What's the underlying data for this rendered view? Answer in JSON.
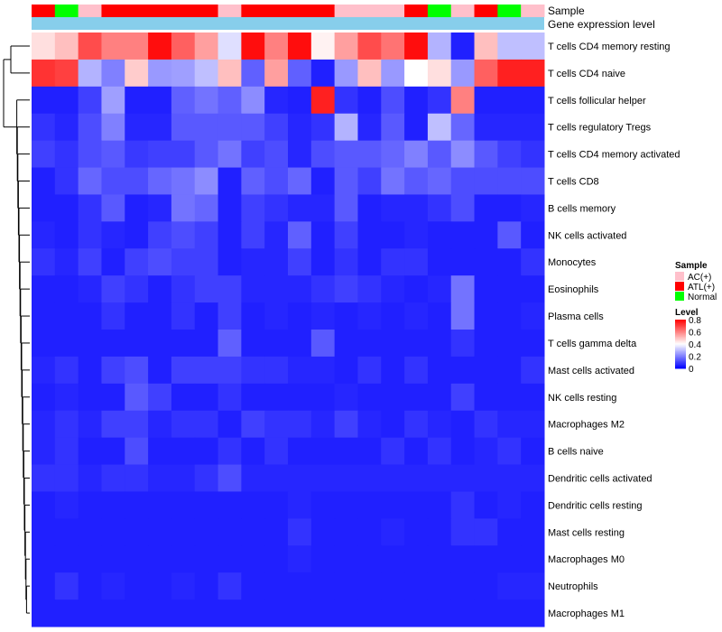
{
  "chart_data": {
    "type": "heatmap",
    "title": "",
    "annotation_rows": [
      {
        "name": "Sample",
        "values": [
          "ATL(+)",
          "Normal",
          "AC(+)",
          "ATL(+)",
          "ATL(+)",
          "ATL(+)",
          "ATL(+)",
          "ATL(+)",
          "AC(+)",
          "ATL(+)",
          "ATL(+)",
          "ATL(+)",
          "ATL(+)",
          "AC(+)",
          "AC(+)",
          "AC(+)",
          "ATL(+)",
          "Normal",
          "AC(+)",
          "ATL(+)",
          "Normal",
          "AC(+)"
        ]
      },
      {
        "name": "Gene expression level"
      }
    ],
    "rows": [
      "T cells CD4 memory resting",
      "T cells CD4 naive",
      "T cells follicular helper",
      "T cells regulatory  Tregs",
      "T cells CD4 memory activated",
      "T cells CD8",
      "B cells memory",
      "NK cells activated",
      "Monocytes",
      "Eosinophils",
      "Plasma cells",
      "T cells gamma delta",
      "Mast cells activated",
      "NK cells resting",
      "Macrophages M2",
      "B cells naive",
      "Dendritic cells activated",
      "Dendritic cells resting",
      "Mast cells resting",
      "Macrophages M0",
      "Neutrophils",
      "Macrophages M1"
    ],
    "values": [
      [
        0.45,
        0.5,
        0.68,
        0.6,
        0.6,
        0.78,
        0.65,
        0.55,
        0.35,
        0.78,
        0.6,
        0.78,
        0.42,
        0.55,
        0.68,
        0.62,
        0.78,
        0.28,
        0.05,
        0.5,
        0.3,
        0.3
      ],
      [
        0.72,
        0.7,
        0.28,
        0.2,
        0.48,
        0.24,
        0.25,
        0.3,
        0.5,
        0.15,
        0.55,
        0.15,
        0.05,
        0.24,
        0.5,
        0.24,
        0.4,
        0.45,
        0.24,
        0.65,
        0.75,
        0.75
      ],
      [
        0.05,
        0.05,
        0.1,
        0.25,
        0.05,
        0.05,
        0.15,
        0.18,
        0.15,
        0.22,
        0.06,
        0.05,
        0.75,
        0.08,
        0.05,
        0.12,
        0.05,
        0.08,
        0.6,
        0.05,
        0.05,
        0.05
      ],
      [
        0.08,
        0.06,
        0.12,
        0.2,
        0.06,
        0.06,
        0.14,
        0.14,
        0.14,
        0.14,
        0.1,
        0.06,
        0.08,
        0.28,
        0.06,
        0.14,
        0.05,
        0.3,
        0.16,
        0.06,
        0.06,
        0.06
      ],
      [
        0.1,
        0.08,
        0.12,
        0.14,
        0.09,
        0.1,
        0.1,
        0.14,
        0.18,
        0.1,
        0.12,
        0.06,
        0.12,
        0.14,
        0.14,
        0.16,
        0.2,
        0.14,
        0.22,
        0.14,
        0.1,
        0.08
      ],
      [
        0.05,
        0.08,
        0.16,
        0.12,
        0.12,
        0.16,
        0.18,
        0.22,
        0.05,
        0.15,
        0.12,
        0.16,
        0.05,
        0.14,
        0.1,
        0.18,
        0.14,
        0.16,
        0.12,
        0.12,
        0.12,
        0.12
      ],
      [
        0.05,
        0.05,
        0.08,
        0.14,
        0.05,
        0.06,
        0.18,
        0.16,
        0.05,
        0.1,
        0.08,
        0.06,
        0.06,
        0.14,
        0.05,
        0.06,
        0.06,
        0.08,
        0.12,
        0.05,
        0.05,
        0.06
      ],
      [
        0.06,
        0.05,
        0.08,
        0.06,
        0.05,
        0.1,
        0.12,
        0.1,
        0.05,
        0.1,
        0.06,
        0.15,
        0.05,
        0.1,
        0.05,
        0.05,
        0.06,
        0.05,
        0.05,
        0.05,
        0.14,
        0.05
      ],
      [
        0.08,
        0.06,
        0.1,
        0.05,
        0.1,
        0.12,
        0.1,
        0.1,
        0.05,
        0.06,
        0.06,
        0.1,
        0.05,
        0.08,
        0.05,
        0.08,
        0.08,
        0.05,
        0.05,
        0.05,
        0.05,
        0.08
      ],
      [
        0.05,
        0.05,
        0.06,
        0.1,
        0.08,
        0.05,
        0.08,
        0.1,
        0.1,
        0.06,
        0.06,
        0.06,
        0.08,
        0.1,
        0.08,
        0.06,
        0.05,
        0.06,
        0.18,
        0.05,
        0.05,
        0.05
      ],
      [
        0.05,
        0.05,
        0.05,
        0.08,
        0.05,
        0.05,
        0.08,
        0.05,
        0.1,
        0.05,
        0.06,
        0.05,
        0.06,
        0.05,
        0.06,
        0.05,
        0.06,
        0.05,
        0.18,
        0.05,
        0.05,
        0.06
      ],
      [
        0.05,
        0.05,
        0.05,
        0.05,
        0.05,
        0.05,
        0.05,
        0.05,
        0.15,
        0.05,
        0.05,
        0.05,
        0.14,
        0.05,
        0.05,
        0.05,
        0.05,
        0.05,
        0.08,
        0.05,
        0.05,
        0.05
      ],
      [
        0.06,
        0.08,
        0.05,
        0.1,
        0.12,
        0.05,
        0.1,
        0.1,
        0.1,
        0.08,
        0.08,
        0.06,
        0.06,
        0.05,
        0.08,
        0.05,
        0.08,
        0.05,
        0.05,
        0.05,
        0.05,
        0.08
      ],
      [
        0.05,
        0.06,
        0.05,
        0.05,
        0.14,
        0.1,
        0.05,
        0.05,
        0.08,
        0.05,
        0.05,
        0.05,
        0.05,
        0.06,
        0.05,
        0.05,
        0.05,
        0.05,
        0.1,
        0.05,
        0.05,
        0.05
      ],
      [
        0.06,
        0.08,
        0.06,
        0.1,
        0.1,
        0.06,
        0.08,
        0.08,
        0.05,
        0.1,
        0.08,
        0.08,
        0.06,
        0.1,
        0.06,
        0.05,
        0.08,
        0.06,
        0.05,
        0.08,
        0.06,
        0.06
      ],
      [
        0.06,
        0.08,
        0.05,
        0.05,
        0.12,
        0.05,
        0.05,
        0.05,
        0.08,
        0.05,
        0.08,
        0.05,
        0.05,
        0.05,
        0.05,
        0.08,
        0.05,
        0.08,
        0.05,
        0.06,
        0.08,
        0.05
      ],
      [
        0.08,
        0.08,
        0.06,
        0.08,
        0.08,
        0.06,
        0.06,
        0.08,
        0.12,
        0.06,
        0.06,
        0.06,
        0.06,
        0.06,
        0.06,
        0.06,
        0.06,
        0.06,
        0.06,
        0.06,
        0.06,
        0.06
      ],
      [
        0.05,
        0.06,
        0.05,
        0.05,
        0.05,
        0.05,
        0.05,
        0.05,
        0.05,
        0.05,
        0.05,
        0.06,
        0.05,
        0.05,
        0.05,
        0.05,
        0.05,
        0.05,
        0.08,
        0.05,
        0.06,
        0.05
      ],
      [
        0.05,
        0.05,
        0.05,
        0.05,
        0.05,
        0.05,
        0.05,
        0.05,
        0.05,
        0.05,
        0.05,
        0.08,
        0.05,
        0.05,
        0.05,
        0.06,
        0.05,
        0.05,
        0.08,
        0.08,
        0.05,
        0.05
      ],
      [
        0.05,
        0.05,
        0.05,
        0.05,
        0.05,
        0.05,
        0.05,
        0.05,
        0.05,
        0.05,
        0.05,
        0.06,
        0.05,
        0.05,
        0.05,
        0.05,
        0.05,
        0.05,
        0.05,
        0.05,
        0.05,
        0.05
      ],
      [
        0.05,
        0.08,
        0.05,
        0.06,
        0.05,
        0.05,
        0.06,
        0.05,
        0.08,
        0.05,
        0.05,
        0.05,
        0.05,
        0.05,
        0.05,
        0.05,
        0.05,
        0.05,
        0.05,
        0.05,
        0.06,
        0.06
      ],
      [
        0.05,
        0.05,
        0.05,
        0.05,
        0.05,
        0.05,
        0.05,
        0.05,
        0.05,
        0.05,
        0.05,
        0.05,
        0.05,
        0.05,
        0.05,
        0.05,
        0.05,
        0.05,
        0.05,
        0.05,
        0.05,
        0.05
      ]
    ],
    "sample_legend": {
      "title": "Sample",
      "entries": [
        {
          "label": "AC(+)",
          "color": "#ffc0cb"
        },
        {
          "label": "ATL(+)",
          "color": "#ff0000"
        },
        {
          "label": "Normal",
          "color": "#00ff00"
        }
      ]
    },
    "level_legend": {
      "title": "Level",
      "ticks": [
        "0.8",
        "0.6",
        "0.4",
        "0.2",
        "0"
      ],
      "tick_values": [
        0.8,
        0.6,
        0.4,
        0.2,
        0
      ],
      "range": [
        0,
        0.8
      ]
    },
    "color_scale": {
      "low": "#0000ff",
      "mid": "#ffffff",
      "high": "#ff0000",
      "midpoint": 0.4
    },
    "gene_expression_bar_color": "#87ceeb"
  }
}
